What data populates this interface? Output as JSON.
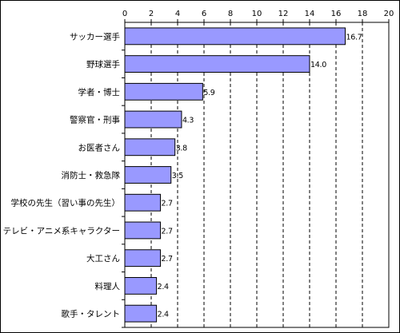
{
  "chart_data": {
    "type": "bar",
    "orientation": "horizontal",
    "title": "",
    "xlabel": "",
    "ylabel": "",
    "categories": [
      "サッカー選手",
      "野球選手",
      "学者・博士",
      "警察官・刑事",
      "お医者さん",
      "消防士・救急隊",
      "学校の先生（習い事の先生）",
      "テレビ・アニメ系キャラクター",
      "大工さん",
      "料理人",
      "歌手・タレント"
    ],
    "values": [
      16.7,
      14.0,
      5.9,
      4.3,
      3.8,
      3.5,
      2.7,
      2.7,
      2.7,
      2.4,
      2.4
    ],
    "value_labels": [
      "16.7",
      "14.0",
      "5.9",
      "4.3",
      "3.8",
      "3.5",
      "2.7",
      "2.7",
      "2.7",
      "2.4",
      "2.4"
    ],
    "xlim": [
      0,
      20
    ],
    "ticks": [
      0,
      2,
      4,
      6,
      8,
      10,
      12,
      14,
      16,
      18,
      20
    ],
    "tick_labels": [
      "0",
      "2",
      "4",
      "6",
      "8",
      "10",
      "12",
      "14",
      "16",
      "18",
      "20"
    ],
    "axis_position": "top",
    "grid": "vertical-dashed",
    "legend": "none",
    "colors": {
      "bar_fill": "#9999ff",
      "bar_stroke": "#000000",
      "grid": "#000000",
      "text": "#000000",
      "background": "#ffffff"
    }
  }
}
